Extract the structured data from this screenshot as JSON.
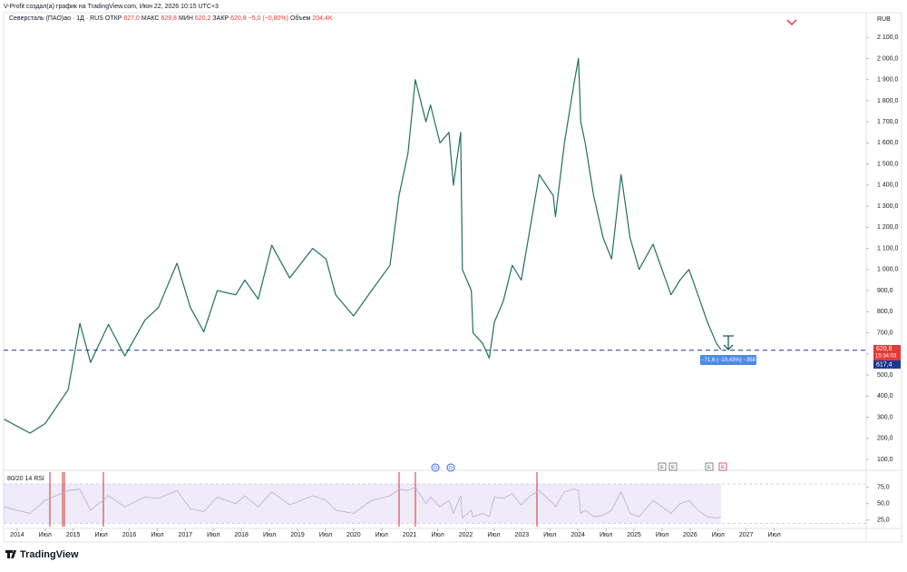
{
  "header": "V-Profit создал(а) график на TradingView.com, Июн 22, 2026 10:15 UTC+3",
  "brand": "TradingView",
  "chart_data": [
    {
      "type": "line",
      "symbol": "Северсталь (ПАО)ао · 1Д · RUS",
      "stats": [
        {
          "name": "ОТКР",
          "value": "627,0"
        },
        {
          "name": "МАКС",
          "value": "629,8"
        },
        {
          "name": "МИН",
          "value": "620,2"
        },
        {
          "name": "ЗАКР",
          "value": "620,8"
        },
        {
          "name": "",
          "value": "−5,0 (−0,80%)"
        },
        {
          "name": "Объем",
          "value": "204,4K"
        }
      ],
      "unit": "RUB",
      "color": "#1f6f63",
      "x": [
        2013.77,
        2014.23,
        2014.5,
        2014.91,
        2015.12,
        2015.31,
        2015.63,
        2015.92,
        2016.28,
        2016.52,
        2016.85,
        2017.09,
        2017.33,
        2017.57,
        2017.9,
        2018.06,
        2018.3,
        2018.54,
        2018.86,
        2019.27,
        2019.51,
        2019.68,
        2020.0,
        2020.32,
        2020.65,
        2020.81,
        2020.97,
        2021.1,
        2021.29,
        2021.37,
        2021.54,
        2021.7,
        2021.78,
        2021.91,
        2021.94,
        2022.1,
        2022.13,
        2022.3,
        2022.42,
        2022.51,
        2022.67,
        2022.83,
        2022.99,
        2023.15,
        2023.31,
        2023.56,
        2023.6,
        2023.76,
        2023.93,
        2024.01,
        2024.05,
        2024.13,
        2024.28,
        2024.45,
        2024.6,
        2024.77,
        2024.93,
        2025.09,
        2025.34,
        2025.5,
        2025.66,
        2025.82,
        2025.98,
        2026.14,
        2026.31,
        2026.47,
        2026.55
      ],
      "values": [
        290,
        225,
        270,
        430,
        745,
        560,
        740,
        590,
        760,
        820,
        1030,
        820,
        705,
        900,
        880,
        950,
        860,
        1115,
        960,
        1100,
        1050,
        880,
        780,
        900,
        1020,
        1350,
        1550,
        1900,
        1700,
        1780,
        1600,
        1650,
        1400,
        1650,
        1000,
        900,
        700,
        650,
        580,
        750,
        850,
        1020,
        950,
        1200,
        1450,
        1350,
        1250,
        1600,
        1880,
        2000,
        1700,
        1600,
        1350,
        1150,
        1050,
        1450,
        1150,
        1000,
        1120,
        1000,
        880,
        950,
        1000,
        880,
        750,
        650,
        620.8
      ],
      "xlim": [
        2013.76,
        2029.14
      ],
      "xticks": [
        2014,
        {
          "value": 2014.5,
          "label": "Июл"
        },
        2015,
        {
          "value": 2015.5,
          "label": "Июл"
        },
        2016,
        {
          "value": 2016.5,
          "label": "Июл"
        },
        2017,
        {
          "value": 2017.5,
          "label": "Июл"
        },
        2018,
        {
          "value": 2018.5,
          "label": "Июл"
        },
        2019,
        {
          "value": 2019.5,
          "label": "Июл"
        },
        2020,
        {
          "value": 2020.5,
          "label": "Июл"
        },
        2021,
        {
          "value": 2021.5,
          "label": "Июл"
        },
        2022,
        {
          "value": 2022.5,
          "label": "Июл"
        },
        2023,
        {
          "value": 2023.5,
          "label": "Июл"
        },
        2024,
        {
          "value": 2024.5,
          "label": "Июл"
        },
        2025,
        {
          "value": 2025.5,
          "label": "Июл"
        },
        2026,
        {
          "value": 2026.5,
          "label": "Июл"
        },
        2027,
        {
          "value": 2027.5,
          "label": "Июл"
        }
      ],
      "ylim": [
        57,
        2217
      ],
      "yticks": [
        {
          "value": 100,
          "label": "100,0"
        },
        {
          "value": 200,
          "label": "200,0"
        },
        {
          "value": 300,
          "label": "300,0"
        },
        {
          "value": 400,
          "label": "400,0"
        },
        {
          "value": 500,
          "label": "500,0"
        },
        {
          "value": 600,
          "label": "600,0"
        },
        {
          "value": 700,
          "label": "700,0"
        },
        {
          "value": 800,
          "label": "800,0"
        },
        {
          "value": 900,
          "label": "900,0"
        },
        {
          "value": 1000,
          "label": "1 000,0"
        },
        {
          "value": 1100,
          "label": "1 100,0"
        },
        {
          "value": 1200,
          "label": "1 200,0"
        },
        {
          "value": 1300,
          "label": "1 300,0"
        },
        {
          "value": 1400,
          "label": "1 400,0"
        },
        {
          "value": 1500,
          "label": "1 500,0"
        },
        {
          "value": 1600,
          "label": "1 600,0"
        },
        {
          "value": 1700,
          "label": "1 700,0"
        },
        {
          "value": 1800,
          "label": "1 800,0"
        },
        {
          "value": 1900,
          "label": "1 900,0"
        },
        {
          "value": 2000,
          "label": "2 000,0"
        },
        {
          "value": 2100,
          "label": "2 100,0"
        }
      ],
      "last_price": {
        "value": 620.8,
        "label": "620,8"
      },
      "countdown": "15:34:03",
      "reference_line": {
        "value": 617.4,
        "label": "617,4"
      },
      "measure_label": "−71,6 (−10,43%) −358",
      "events": [
        "D",
        "D",
        "E",
        "E",
        "E",
        "E"
      ]
    },
    {
      "type": "line",
      "title": "80/20 14 RSI",
      "color": "#b9b0c9",
      "x": [
        2013.77,
        2014.23,
        2014.5,
        2014.91,
        2015.12,
        2015.31,
        2015.63,
        2015.92,
        2016.28,
        2016.52,
        2016.85,
        2017.09,
        2017.33,
        2017.57,
        2017.9,
        2018.06,
        2018.3,
        2018.54,
        2018.86,
        2019.27,
        2019.51,
        2019.68,
        2020.0,
        2020.32,
        2020.65,
        2020.81,
        2020.97,
        2021.1,
        2021.29,
        2021.37,
        2021.54,
        2021.7,
        2021.78,
        2021.91,
        2021.94,
        2022.1,
        2022.13,
        2022.3,
        2022.42,
        2022.51,
        2022.67,
        2022.83,
        2022.99,
        2023.15,
        2023.31,
        2023.56,
        2023.6,
        2023.76,
        2023.93,
        2024.01,
        2024.05,
        2024.13,
        2024.28,
        2024.45,
        2024.6,
        2024.77,
        2024.93,
        2025.09,
        2025.34,
        2025.5,
        2025.66,
        2025.82,
        2025.98,
        2026.14,
        2026.31,
        2026.47,
        2026.55
      ],
      "values": [
        45,
        35,
        55,
        70,
        72,
        40,
        62,
        45,
        60,
        58,
        70,
        42,
        38,
        60,
        50,
        62,
        45,
        68,
        48,
        62,
        55,
        40,
        35,
        55,
        62,
        72,
        70,
        75,
        50,
        60,
        45,
        55,
        35,
        62,
        28,
        40,
        30,
        35,
        30,
        60,
        58,
        65,
        48,
        62,
        70,
        50,
        45,
        68,
        72,
        70,
        35,
        40,
        30,
        32,
        40,
        68,
        35,
        30,
        55,
        45,
        35,
        50,
        55,
        40,
        30,
        28,
        30
      ],
      "xlim": [
        2013.76,
        2029.14
      ],
      "ylim": [
        15,
        98
      ],
      "yticks": [
        {
          "value": 25,
          "label": "25,0"
        },
        {
          "value": 50,
          "label": "50,0"
        },
        {
          "value": 75,
          "label": "75,0"
        }
      ],
      "band": [
        20,
        80
      ]
    }
  ]
}
